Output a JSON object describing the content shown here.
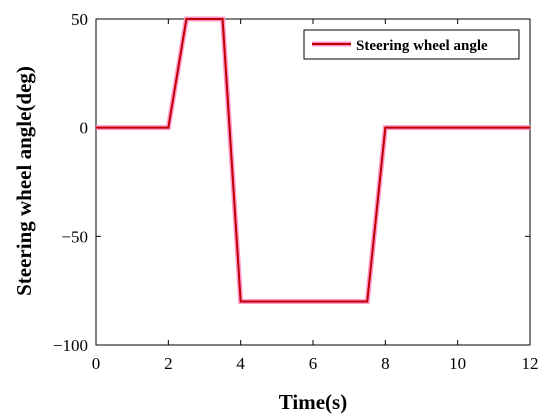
{
  "chart_data": {
    "type": "line",
    "title": "",
    "xlabel": "Time(s)",
    "ylabel": "Steering wheel angle(deg)",
    "xlim": [
      0,
      12
    ],
    "ylim": [
      -100,
      50
    ],
    "xticks": [
      0,
      2,
      4,
      6,
      8,
      10,
      12
    ],
    "yticks": [
      50,
      0,
      -50,
      -100
    ],
    "grid": false,
    "legend_position": "top-right",
    "series": [
      {
        "name": "Steering wheel angle",
        "color": "#c00000",
        "glow_color": "#ff99cc",
        "x": [
          0,
          2,
          2.5,
          3.5,
          4,
          7.5,
          8,
          12
        ],
        "y": [
          0,
          0,
          50,
          50,
          -80,
          -80,
          0,
          0
        ]
      }
    ]
  }
}
